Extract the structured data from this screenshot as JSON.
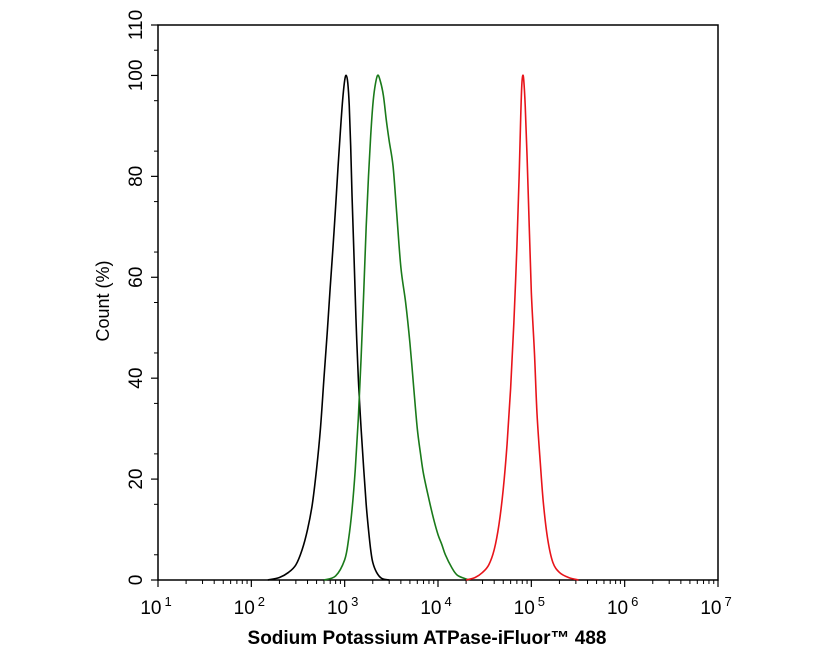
{
  "chart_data": {
    "type": "line",
    "title": "",
    "xlabel": "Sodium Potassium ATPase-iFluor™ 488",
    "ylabel": "Count  (%)",
    "x_scale": "log",
    "xlim": [
      10,
      10000000
    ],
    "ylim": [
      0,
      110
    ],
    "x_ticks": [
      {
        "base": "10",
        "exp": "1",
        "value": 10
      },
      {
        "base": "10",
        "exp": "2",
        "value": 100
      },
      {
        "base": "10",
        "exp": "3",
        "value": 1000
      },
      {
        "base": "10",
        "exp": "4",
        "value": 10000
      },
      {
        "base": "10",
        "exp": "5",
        "value": 100000
      },
      {
        "base": "10",
        "exp": "6",
        "value": 1000000
      },
      {
        "base": "10",
        "exp": "7",
        "value": 10000000
      }
    ],
    "y_ticks": [
      {
        "label": "0",
        "value": 0
      },
      {
        "label": "20",
        "value": 20
      },
      {
        "label": "40",
        "value": 40
      },
      {
        "label": "60",
        "value": 60
      },
      {
        "label": "80",
        "value": 80
      },
      {
        "label": "100",
        "value": 100
      },
      {
        "label": "110",
        "value": 110
      }
    ],
    "grid": false,
    "legend": "none",
    "series": [
      {
        "color": "#000000",
        "points": [
          [
            150,
            0
          ],
          [
            200,
            0.5
          ],
          [
            250,
            1.5
          ],
          [
            300,
            3
          ],
          [
            350,
            6
          ],
          [
            400,
            10
          ],
          [
            450,
            15
          ],
          [
            500,
            22
          ],
          [
            550,
            30
          ],
          [
            600,
            40
          ],
          [
            650,
            49
          ],
          [
            700,
            58
          ],
          [
            750,
            66
          ],
          [
            800,
            74
          ],
          [
            850,
            82
          ],
          [
            900,
            89
          ],
          [
            950,
            95
          ],
          [
            1000,
            99
          ],
          [
            1040,
            100
          ],
          [
            1080,
            98.5
          ],
          [
            1120,
            94
          ],
          [
            1160,
            86
          ],
          [
            1200,
            76
          ],
          [
            1260,
            64
          ],
          [
            1320,
            52
          ],
          [
            1400,
            40
          ],
          [
            1500,
            30
          ],
          [
            1600,
            22
          ],
          [
            1700,
            15
          ],
          [
            1800,
            10
          ],
          [
            1900,
            6
          ],
          [
            2000,
            3.5
          ],
          [
            2200,
            1.5
          ],
          [
            2500,
            0.3
          ],
          [
            3000,
            0
          ]
        ]
      },
      {
        "color": "#1a7a1a",
        "points": [
          [
            600,
            0
          ],
          [
            800,
            0.8
          ],
          [
            1000,
            4
          ],
          [
            1100,
            8
          ],
          [
            1200,
            14
          ],
          [
            1300,
            22
          ],
          [
            1400,
            32
          ],
          [
            1500,
            44
          ],
          [
            1600,
            57
          ],
          [
            1700,
            70
          ],
          [
            1800,
            80
          ],
          [
            1900,
            88
          ],
          [
            2000,
            94
          ],
          [
            2100,
            97.5
          ],
          [
            2250,
            100
          ],
          [
            2400,
            99
          ],
          [
            2600,
            96
          ],
          [
            2800,
            91
          ],
          [
            3000,
            87
          ],
          [
            3300,
            82
          ],
          [
            3600,
            73
          ],
          [
            4000,
            62
          ],
          [
            4500,
            55
          ],
          [
            5000,
            47
          ],
          [
            5500,
            38
          ],
          [
            6000,
            30
          ],
          [
            6500,
            25
          ],
          [
            7000,
            21
          ],
          [
            8000,
            16
          ],
          [
            9000,
            12
          ],
          [
            10000,
            9
          ],
          [
            11000,
            7
          ],
          [
            12000,
            5
          ],
          [
            14000,
            2.5
          ],
          [
            16000,
            1
          ],
          [
            20000,
            0.2
          ],
          [
            22000,
            0
          ]
        ]
      },
      {
        "color": "#e8141a",
        "points": [
          [
            20000,
            0
          ],
          [
            25000,
            0.5
          ],
          [
            30000,
            1.5
          ],
          [
            35000,
            3
          ],
          [
            40000,
            6
          ],
          [
            45000,
            11
          ],
          [
            50000,
            18
          ],
          [
            55000,
            27
          ],
          [
            60000,
            38
          ],
          [
            65000,
            51
          ],
          [
            70000,
            66
          ],
          [
            74000,
            80
          ],
          [
            77000,
            92
          ],
          [
            79000,
            98
          ],
          [
            81000,
            100
          ],
          [
            83000,
            99
          ],
          [
            86000,
            94
          ],
          [
            90000,
            84
          ],
          [
            95000,
            70
          ],
          [
            100000,
            57
          ],
          [
            108000,
            45
          ],
          [
            115000,
            33
          ],
          [
            125000,
            23
          ],
          [
            135000,
            15
          ],
          [
            150000,
            8
          ],
          [
            170000,
            3.5
          ],
          [
            200000,
            1.5
          ],
          [
            250000,
            0.5
          ],
          [
            320000,
            0
          ]
        ]
      }
    ]
  }
}
